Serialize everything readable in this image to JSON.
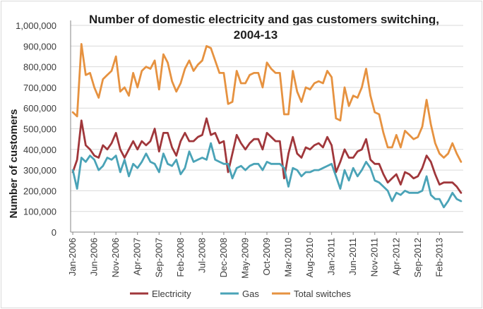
{
  "chart_data": {
    "type": "line",
    "title": "Number of domestic electricity and gas customers switching, 2004-13",
    "ylabel": "Number of customers",
    "xlabel": "",
    "ylim": [
      0,
      1000000
    ],
    "yticks": [
      0,
      100000,
      200000,
      300000,
      400000,
      500000,
      600000,
      700000,
      800000,
      900000,
      1000000
    ],
    "ytick_labels": [
      "0",
      "100,000",
      "200,000",
      "300,000",
      "400,000",
      "500,000",
      "600,000",
      "700,000",
      "800,000",
      "900,000",
      "1,000,000"
    ],
    "x_tick_labels": [
      "Jan-2006",
      "Jun-2006",
      "Nov-2006",
      "Apr-2007",
      "Sep-2007",
      "Feb-2008",
      "Jul-2008",
      "Dec-2008",
      "May-2009",
      "Oct-2009",
      "Mar-2010",
      "Aug-2010",
      "Jan-2011",
      "Jun-2011",
      "Nov-2011",
      "Apr-2012",
      "Sep-2012",
      "Feb-2013"
    ],
    "x_tick_every": 5,
    "grid": "horizontal",
    "legend_position": "bottom",
    "series": [
      {
        "name": "Electricity",
        "color": "#a0373b",
        "values": [
          290000,
          350000,
          540000,
          420000,
          400000,
          370000,
          360000,
          420000,
          400000,
          430000,
          480000,
          400000,
          360000,
          400000,
          440000,
          400000,
          440000,
          420000,
          440000,
          500000,
          390000,
          480000,
          480000,
          410000,
          370000,
          440000,
          480000,
          440000,
          440000,
          460000,
          470000,
          550000,
          470000,
          480000,
          430000,
          440000,
          290000,
          380000,
          470000,
          430000,
          400000,
          430000,
          450000,
          450000,
          400000,
          480000,
          460000,
          440000,
          440000,
          260000,
          380000,
          460000,
          380000,
          360000,
          410000,
          400000,
          420000,
          430000,
          410000,
          460000,
          420000,
          290000,
          340000,
          400000,
          360000,
          360000,
          390000,
          400000,
          450000,
          350000,
          330000,
          330000,
          280000,
          240000,
          260000,
          280000,
          230000,
          290000,
          280000,
          260000,
          270000,
          310000,
          370000,
          340000,
          280000,
          230000,
          240000,
          240000,
          240000,
          220000,
          190000
        ]
      },
      {
        "name": "Gas",
        "color": "#4aa3b7",
        "values": [
          300000,
          210000,
          360000,
          340000,
          370000,
          350000,
          300000,
          320000,
          360000,
          350000,
          370000,
          290000,
          350000,
          270000,
          330000,
          310000,
          340000,
          380000,
          340000,
          330000,
          290000,
          380000,
          330000,
          320000,
          350000,
          280000,
          310000,
          390000,
          340000,
          350000,
          360000,
          350000,
          430000,
          350000,
          340000,
          330000,
          330000,
          260000,
          310000,
          320000,
          300000,
          320000,
          330000,
          330000,
          300000,
          340000,
          330000,
          330000,
          330000,
          310000,
          220000,
          310000,
          300000,
          270000,
          290000,
          290000,
          300000,
          300000,
          310000,
          320000,
          330000,
          270000,
          210000,
          300000,
          250000,
          310000,
          270000,
          300000,
          340000,
          310000,
          250000,
          240000,
          220000,
          200000,
          150000,
          190000,
          180000,
          200000,
          190000,
          190000,
          190000,
          200000,
          270000,
          180000,
          160000,
          160000,
          120000,
          150000,
          190000,
          160000,
          150000
        ]
      },
      {
        "name": "Total switches",
        "color": "#e69240",
        "values": [
          580000,
          560000,
          910000,
          760000,
          770000,
          700000,
          650000,
          740000,
          760000,
          780000,
          850000,
          680000,
          700000,
          660000,
          770000,
          700000,
          780000,
          800000,
          790000,
          830000,
          690000,
          860000,
          820000,
          730000,
          680000,
          720000,
          790000,
          830000,
          780000,
          810000,
          830000,
          900000,
          890000,
          830000,
          770000,
          770000,
          620000,
          630000,
          780000,
          720000,
          720000,
          760000,
          770000,
          770000,
          700000,
          820000,
          790000,
          770000,
          770000,
          570000,
          570000,
          780000,
          680000,
          630000,
          700000,
          690000,
          720000,
          730000,
          720000,
          780000,
          750000,
          550000,
          540000,
          700000,
          610000,
          660000,
          650000,
          700000,
          790000,
          660000,
          580000,
          570000,
          480000,
          410000,
          410000,
          470000,
          410000,
          490000,
          470000,
          450000,
          460000,
          510000,
          640000,
          520000,
          430000,
          380000,
          360000,
          380000,
          430000,
          380000,
          340000
        ]
      }
    ]
  }
}
